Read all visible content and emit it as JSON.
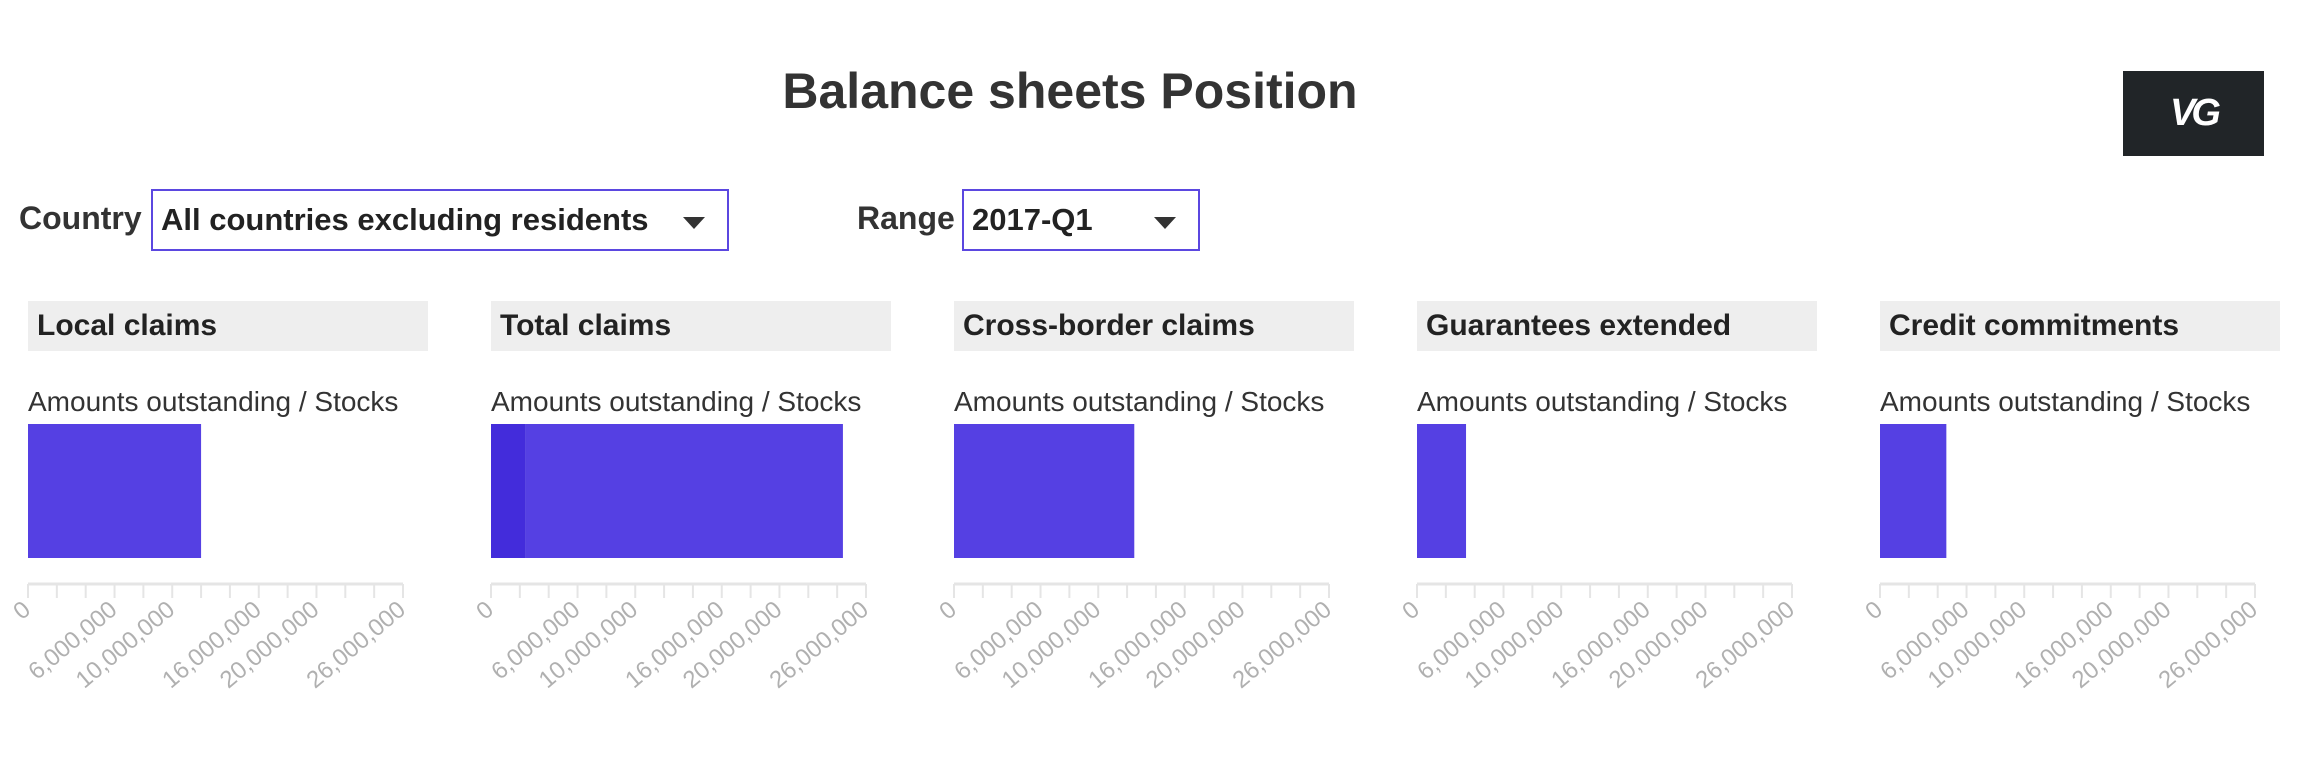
{
  "header": {
    "title": "Balance sheets Position",
    "logo_text": "VG"
  },
  "filters": {
    "country_label": "Country",
    "country_value": "All countries excluding residents",
    "range_label": "Range",
    "range_value": "2017-Q1"
  },
  "colors": {
    "bar": "#5540e3",
    "bar_highlight": "#432cdb",
    "axis": "#e5e5e5",
    "tick_label": "#b0b0b0"
  },
  "chart_data": [
    {
      "type": "bar",
      "title": "Local claims",
      "subtitle": "Amounts outstanding / Stocks",
      "orientation": "horizontal",
      "xlim": [
        0,
        26000000
      ],
      "ticks": [
        0,
        6000000,
        10000000,
        16000000,
        20000000,
        26000000
      ],
      "tick_labels": [
        "0",
        "6,000,000",
        "10,000,000",
        "16,000,000",
        "20,000,000",
        "26,000,000"
      ],
      "segments": [
        {
          "value": 12000000,
          "color": "#5540e3"
        }
      ]
    },
    {
      "type": "bar",
      "title": "Total claims",
      "subtitle": "Amounts outstanding / Stocks",
      "orientation": "horizontal",
      "xlim": [
        0,
        26000000
      ],
      "ticks": [
        0,
        6000000,
        10000000,
        16000000,
        20000000,
        26000000
      ],
      "tick_labels": [
        "0",
        "6,000,000",
        "10,000,000",
        "16,000,000",
        "20,000,000",
        "26,000,000"
      ],
      "segments": [
        {
          "value": 2400000,
          "color": "#432cdb"
        },
        {
          "value": 22000000,
          "color": "#5540e3"
        }
      ]
    },
    {
      "type": "bar",
      "title": "Cross-border claims",
      "subtitle": "Amounts outstanding / Stocks",
      "orientation": "horizontal",
      "xlim": [
        0,
        26000000
      ],
      "ticks": [
        0,
        6000000,
        10000000,
        16000000,
        20000000,
        26000000
      ],
      "tick_labels": [
        "0",
        "6,000,000",
        "10,000,000",
        "16,000,000",
        "20,000,000",
        "26,000,000"
      ],
      "segments": [
        {
          "value": 12500000,
          "color": "#5540e3"
        }
      ]
    },
    {
      "type": "bar",
      "title": "Guarantees extended",
      "subtitle": "Amounts outstanding / Stocks",
      "orientation": "horizontal",
      "xlim": [
        0,
        26000000
      ],
      "ticks": [
        0,
        6000000,
        10000000,
        16000000,
        20000000,
        26000000
      ],
      "tick_labels": [
        "0",
        "6,000,000",
        "10,000,000",
        "16,000,000",
        "20,000,000",
        "26,000,000"
      ],
      "segments": [
        {
          "value": 3400000,
          "color": "#5540e3"
        }
      ]
    },
    {
      "type": "bar",
      "title": "Credit commitments",
      "subtitle": "Amounts outstanding / Stocks",
      "orientation": "horizontal",
      "xlim": [
        0,
        26000000
      ],
      "ticks": [
        0,
        6000000,
        10000000,
        16000000,
        20000000,
        26000000
      ],
      "tick_labels": [
        "0",
        "6,000,000",
        "10,000,000",
        "16,000,000",
        "20,000,000",
        "26,000,000"
      ],
      "segments": [
        {
          "value": 4600000,
          "color": "#5540e3"
        }
      ]
    }
  ]
}
